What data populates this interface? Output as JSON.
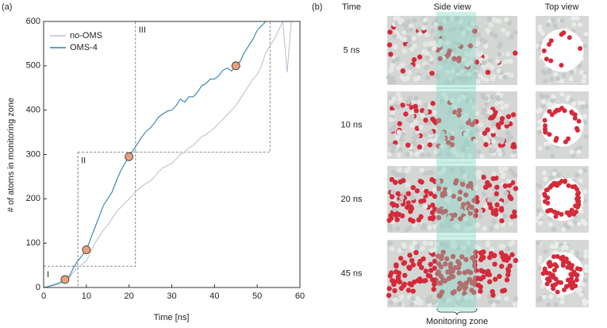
{
  "panel_a": {
    "label": "(a)"
  },
  "chart_data": {
    "type": "line",
    "xlabel": "Time [ns]",
    "ylabel": "# of atoms in monitoring zone",
    "xlim": [
      0,
      60
    ],
    "xticks": [
      0,
      10,
      20,
      30,
      40,
      50,
      60
    ],
    "ylim": [
      0,
      600
    ],
    "yticks": [
      0,
      100,
      200,
      300,
      400,
      500,
      600
    ],
    "legend": "upper left",
    "series": [
      {
        "name": "no-OMS",
        "color": "#c3c0d2",
        "x": [
          0,
          1,
          2,
          3,
          4,
          5,
          6,
          7,
          8,
          9,
          10,
          11,
          12,
          13,
          14,
          15,
          16,
          17,
          18,
          19,
          20,
          21,
          22,
          23,
          24,
          25,
          26,
          27,
          28,
          29,
          30,
          31,
          32,
          33,
          34,
          35,
          36,
          37,
          38,
          39,
          40,
          41,
          42,
          43,
          44,
          45,
          46,
          47,
          48,
          49,
          50,
          51,
          52,
          53,
          54,
          55,
          56,
          57,
          58,
          59,
          60
        ],
        "values": [
          0,
          2,
          4,
          6,
          9,
          15,
          22,
          35,
          45,
          52,
          60,
          80,
          100,
          115,
          130,
          140,
          155,
          170,
          180,
          190,
          200,
          210,
          220,
          228,
          235,
          240,
          250,
          262,
          270,
          275,
          280,
          290,
          300,
          305,
          315,
          320,
          330,
          340,
          345,
          352,
          360,
          370,
          380,
          390,
          400,
          410,
          425,
          440,
          455,
          470,
          480,
          500,
          530,
          545,
          560,
          580,
          600,
          485,
          600,
          600,
          600
        ]
      },
      {
        "name": "OMS-4",
        "color": "#2f7fb0",
        "x": [
          0,
          1,
          2,
          3,
          4,
          5,
          6,
          7,
          8,
          9,
          10,
          11,
          12,
          13,
          14,
          15,
          16,
          17,
          18,
          19,
          20,
          21,
          22,
          23,
          24,
          25,
          26,
          27,
          28,
          29,
          30,
          31,
          32,
          33,
          34,
          35,
          36,
          37,
          38,
          39,
          40,
          41,
          42,
          43,
          44,
          45,
          46,
          47,
          48,
          49,
          50,
          51,
          52,
          53
        ],
        "values": [
          0,
          2,
          5,
          8,
          12,
          18,
          25,
          45,
          60,
          72,
          85,
          110,
          135,
          160,
          185,
          200,
          215,
          240,
          262,
          280,
          295,
          310,
          325,
          340,
          352,
          360,
          372,
          385,
          392,
          398,
          400,
          410,
          425,
          418,
          430,
          430,
          440,
          455,
          460,
          470,
          470,
          478,
          490,
          495,
          488,
          500,
          510,
          530,
          545,
          560,
          580,
          590,
          600,
          600
        ]
      }
    ],
    "markers": {
      "color": "#e8a07c",
      "x": [
        5,
        10,
        20,
        45
      ],
      "y": [
        18,
        85,
        295,
        500
      ]
    },
    "regions": [
      {
        "label": "I",
        "xlim": [
          0,
          8
        ],
        "ylim": [
          0,
          48
        ]
      },
      {
        "label": "II",
        "xlim": [
          8,
          21.5
        ],
        "ylim": [
          48,
          305
        ]
      },
      {
        "label": "III",
        "xlim": [
          21.5,
          53
        ],
        "ylim": [
          305,
          600
        ]
      }
    ]
  },
  "panel_b": {
    "label": "(b)",
    "headers": [
      "Time",
      "Side view",
      "Top view"
    ],
    "times": [
      "5 ns",
      "10 ns",
      "20 ns",
      "45 ns"
    ],
    "zone_label": "Monitoring zone"
  }
}
